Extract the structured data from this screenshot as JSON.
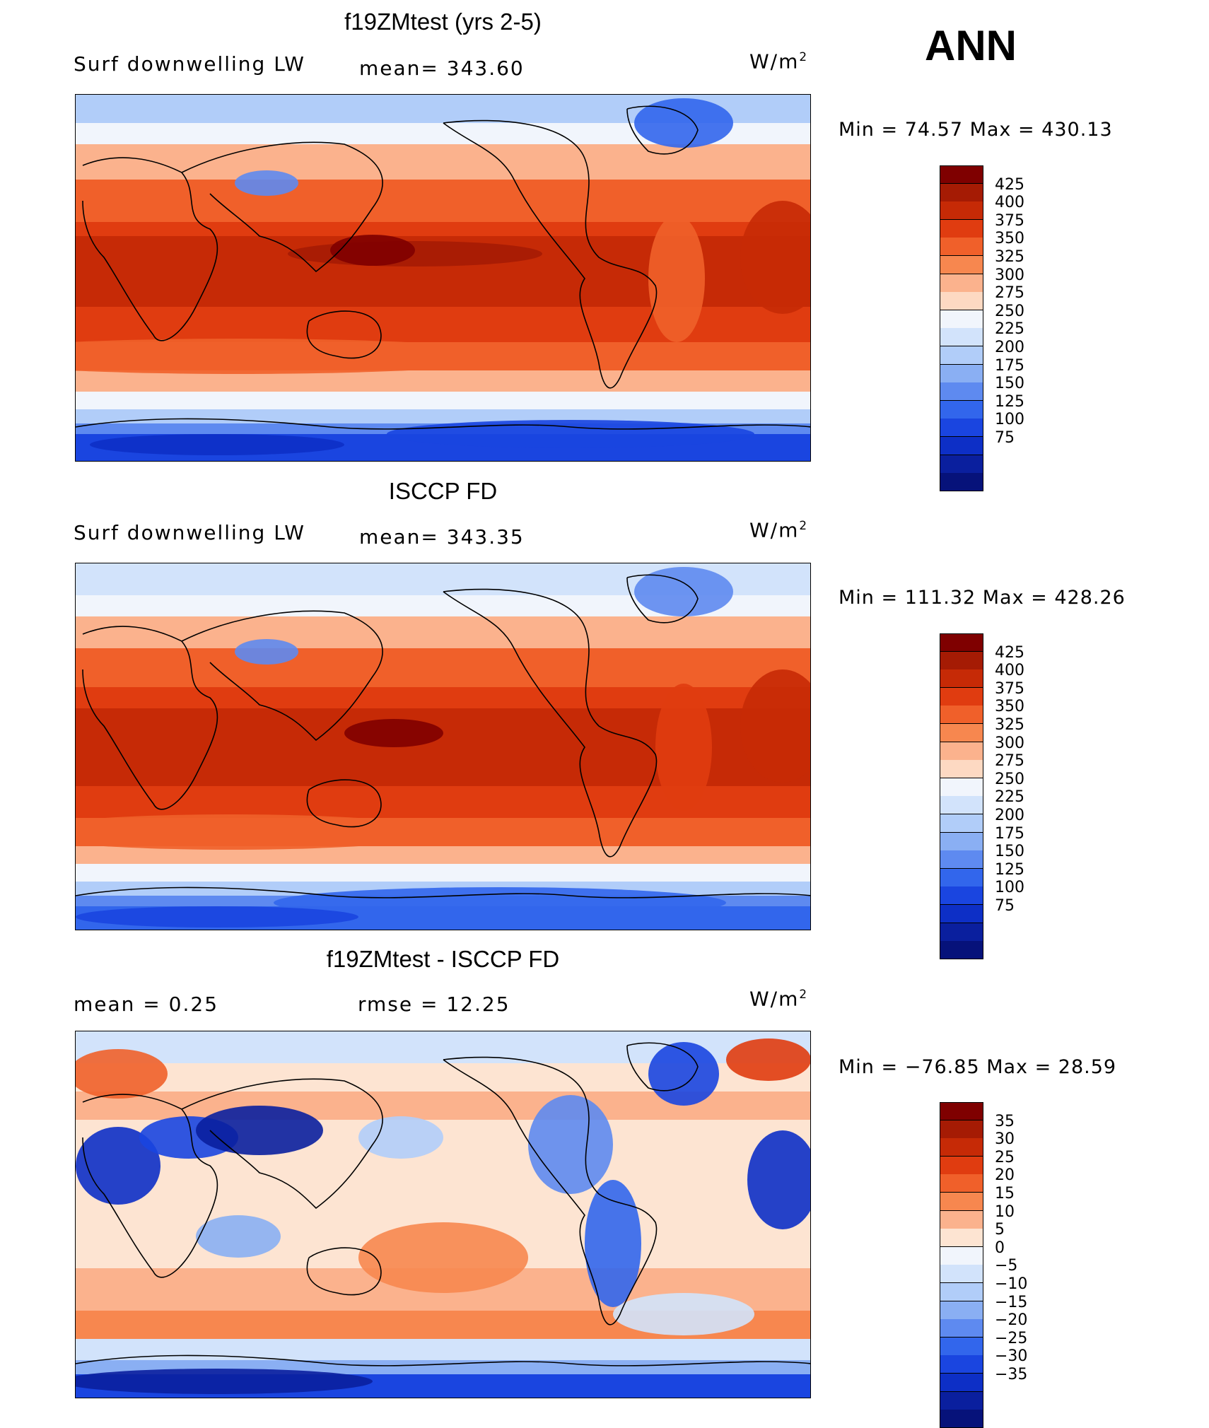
{
  "season": "ANN",
  "units_base": "W/m",
  "units_exp": "2",
  "panels": [
    {
      "title": "f19ZMtest (yrs 2-5)",
      "left_label": "Surf  downwelling LW",
      "center_label": "mean=  343.60",
      "min_max": "Min  =    74.57  Max  =  430.13",
      "colorbar_ticks": [
        "425",
        "400",
        "375",
        "350",
        "325",
        "300",
        "275",
        "250",
        "225",
        "200",
        "175",
        "150",
        "125",
        "100",
        "75"
      ],
      "colors": [
        "#7f0000",
        "#a51b04",
        "#c62a06",
        "#e03c10",
        "#f0602a",
        "#f7874f",
        "#fbb28d",
        "#fdd9c2",
        "#f1f5fc",
        "#d2e3fb",
        "#b1cdf9",
        "#8aaff3",
        "#5e8af0",
        "#3266ec",
        "#1a45e0",
        "#0d2fc6",
        "#0a1f9e",
        "#06127a"
      ]
    },
    {
      "title": "ISCCP FD",
      "left_label": "Surf  downwelling LW",
      "center_label": "mean=  343.35",
      "min_max": "Min  =  111.32  Max  =  428.26",
      "colorbar_ticks": [
        "425",
        "400",
        "375",
        "350",
        "325",
        "300",
        "275",
        "250",
        "225",
        "200",
        "175",
        "150",
        "125",
        "100",
        "75"
      ],
      "colors": [
        "#7f0000",
        "#a51b04",
        "#c62a06",
        "#e03c10",
        "#f0602a",
        "#f7874f",
        "#fbb28d",
        "#fdd9c2",
        "#f1f5fc",
        "#d2e3fb",
        "#b1cdf9",
        "#8aaff3",
        "#5e8af0",
        "#3266ec",
        "#1a45e0",
        "#0d2fc6",
        "#0a1f9e",
        "#06127a"
      ]
    },
    {
      "title": "f19ZMtest - ISCCP FD",
      "left_label": "mean  =     0.25",
      "center_label": "rmse  =    12.25",
      "min_max": "Min  = −76.85  Max  =    28.59",
      "colorbar_ticks": [
        "35",
        "30",
        "25",
        "20",
        "15",
        "10",
        "5",
        "0",
        "−5",
        "−10",
        "−15",
        "−20",
        "−25",
        "−30",
        "−35"
      ],
      "colors": [
        "#7f0000",
        "#a51b04",
        "#c62a06",
        "#e03c10",
        "#f0602a",
        "#f7874f",
        "#fbb28d",
        "#fde4d2",
        "#f1f5fc",
        "#d2e3fb",
        "#b1cdf9",
        "#8aaff3",
        "#5e8af0",
        "#3266ec",
        "#1a45e0",
        "#0d2fc6",
        "#0a1f9e",
        "#06127a"
      ]
    }
  ]
}
